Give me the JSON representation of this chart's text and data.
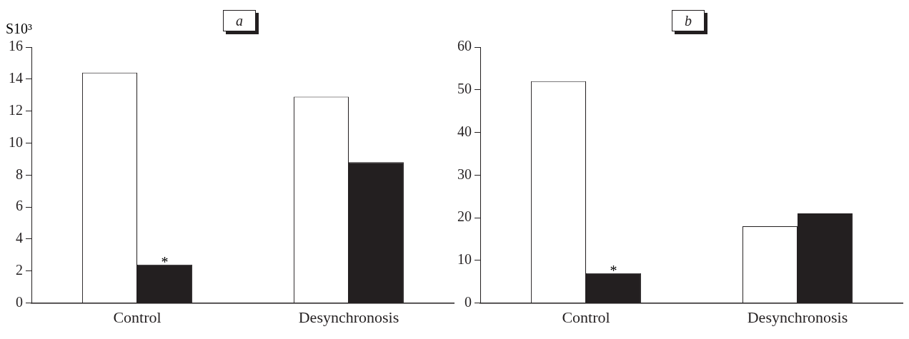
{
  "chart_data": [
    {
      "type": "bar",
      "title": "a",
      "ylabel": "S10³",
      "categories": [
        "Control",
        "Desynchronosis"
      ],
      "series": [
        {
          "color": "#ffffff",
          "values": [
            14.4,
            12.9
          ]
        },
        {
          "color": "#231f20",
          "values": [
            2.4,
            8.8
          ]
        }
      ],
      "ylim": [
        0,
        16
      ],
      "yticks": [
        0,
        2,
        4,
        6,
        8,
        10,
        12,
        14,
        16
      ],
      "grid": false,
      "legend": false,
      "annotations": [
        {
          "text": "*",
          "x": "Control",
          "y": 2.4
        }
      ]
    },
    {
      "type": "bar",
      "title": "b",
      "categories": [
        "Control",
        "Desynchronosis"
      ],
      "series": [
        {
          "color": "#ffffff",
          "values": [
            52,
            18
          ]
        },
        {
          "color": "#231f20",
          "values": [
            7,
            21
          ]
        }
      ],
      "ylim": [
        0,
        60
      ],
      "yticks": [
        0,
        10,
        20,
        30,
        40,
        50,
        60
      ],
      "grid": false,
      "legend": false,
      "annotations": [
        {
          "text": "*",
          "x": "Control",
          "y": 7
        }
      ]
    }
  ]
}
